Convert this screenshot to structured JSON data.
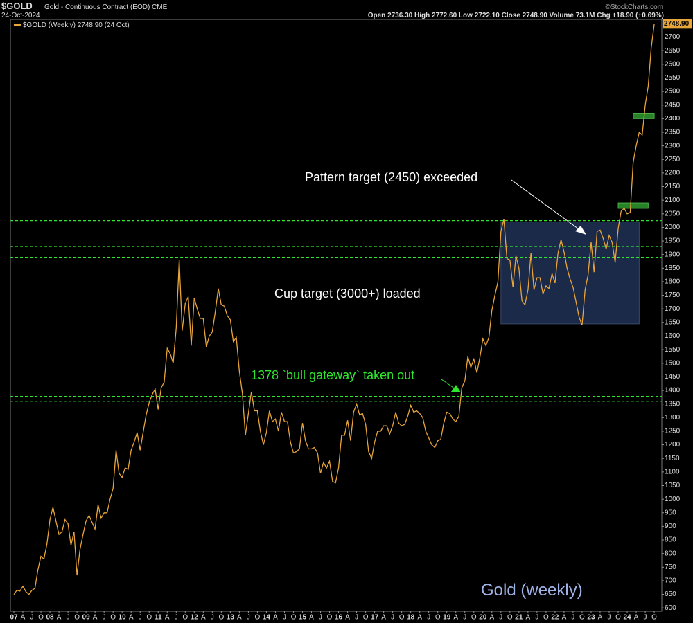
{
  "chart_data": {
    "type": "line",
    "title": "$GOLD",
    "subtitle": "Gold - Continuous Contract (EOD) CME",
    "date": "24-Oct-2024",
    "quote": "Open 2736.30  High 2772.60  Low 2722.10  Close 2748.90  Volume 73.1M  Chg +18.90 (+0.69%)",
    "source": "©StockCharts.com",
    "annotations": [
      "Pattern target (2450) exceeded",
      "Cup target (3000+) loaded",
      "1378 `bull gateway` taken out",
      "Gold (weekly)"
    ],
    "x": [
      "2007-01",
      "2007-02",
      "2007-03",
      "2007-04",
      "2007-05",
      "2007-06",
      "2007-07",
      "2007-08",
      "2007-09",
      "2007-10",
      "2007-11",
      "2007-12",
      "2008-01",
      "2008-02",
      "2008-03",
      "2008-04",
      "2008-05",
      "2008-06",
      "2008-07",
      "2008-08",
      "2008-09",
      "2008-10",
      "2008-11",
      "2008-12",
      "2009-01",
      "2009-02",
      "2009-03",
      "2009-04",
      "2009-05",
      "2009-06",
      "2009-07",
      "2009-08",
      "2009-09",
      "2009-10",
      "2009-11",
      "2009-12",
      "2010-01",
      "2010-02",
      "2010-03",
      "2010-04",
      "2010-05",
      "2010-06",
      "2010-07",
      "2010-08",
      "2010-09",
      "2010-10",
      "2010-11",
      "2010-12",
      "2011-01",
      "2011-02",
      "2011-03",
      "2011-04",
      "2011-05",
      "2011-06",
      "2011-07",
      "2011-08",
      "2011-09",
      "2011-10",
      "2011-11",
      "2011-12",
      "2012-01",
      "2012-02",
      "2012-03",
      "2012-04",
      "2012-05",
      "2012-06",
      "2012-07",
      "2012-08",
      "2012-09",
      "2012-10",
      "2012-11",
      "2012-12",
      "2013-01",
      "2013-02",
      "2013-03",
      "2013-04",
      "2013-05",
      "2013-06",
      "2013-07",
      "2013-08",
      "2013-09",
      "2013-10",
      "2013-11",
      "2013-12",
      "2014-01",
      "2014-02",
      "2014-03",
      "2014-04",
      "2014-05",
      "2014-06",
      "2014-07",
      "2014-08",
      "2014-09",
      "2014-10",
      "2014-11",
      "2014-12",
      "2015-01",
      "2015-02",
      "2015-03",
      "2015-04",
      "2015-05",
      "2015-06",
      "2015-07",
      "2015-08",
      "2015-09",
      "2015-10",
      "2015-11",
      "2015-12",
      "2016-01",
      "2016-02",
      "2016-03",
      "2016-04",
      "2016-05",
      "2016-06",
      "2016-07",
      "2016-08",
      "2016-09",
      "2016-10",
      "2016-11",
      "2016-12",
      "2017-01",
      "2017-02",
      "2017-03",
      "2017-04",
      "2017-05",
      "2017-06",
      "2017-07",
      "2017-08",
      "2017-09",
      "2017-10",
      "2017-11",
      "2017-12",
      "2018-01",
      "2018-02",
      "2018-03",
      "2018-04",
      "2018-05",
      "2018-06",
      "2018-07",
      "2018-08",
      "2018-09",
      "2018-10",
      "2018-11",
      "2018-12",
      "2019-01",
      "2019-02",
      "2019-03",
      "2019-04",
      "2019-05",
      "2019-06",
      "2019-07",
      "2019-08",
      "2019-09",
      "2019-10",
      "2019-11",
      "2019-12",
      "2020-01",
      "2020-02",
      "2020-03",
      "2020-04",
      "2020-05",
      "2020-06",
      "2020-07",
      "2020-08",
      "2020-09",
      "2020-10",
      "2020-11",
      "2020-12",
      "2021-01",
      "2021-02",
      "2021-03",
      "2021-04",
      "2021-05",
      "2021-06",
      "2021-07",
      "2021-08",
      "2021-09",
      "2021-10",
      "2021-11",
      "2021-12",
      "2022-01",
      "2022-02",
      "2022-03",
      "2022-04",
      "2022-05",
      "2022-06",
      "2022-07",
      "2022-08",
      "2022-09",
      "2022-10",
      "2022-11",
      "2022-12",
      "2023-01",
      "2023-02",
      "2023-03",
      "2023-04",
      "2023-05",
      "2023-06",
      "2023-07",
      "2023-08",
      "2023-09",
      "2023-10",
      "2023-11",
      "2023-12",
      "2024-01",
      "2024-02",
      "2024-03",
      "2024-04",
      "2024-05",
      "2024-06",
      "2024-07",
      "2024-08",
      "2024-09",
      "2024-10"
    ],
    "series": [
      {
        "name": "$GOLD (Weekly) 2748.90 (24 Oct)",
        "color": "#e8a53a",
        "values": [
          650,
          665,
          662,
          680,
          660,
          650,
          665,
          672,
          740,
          790,
          780,
          835,
          925,
          970,
          920,
          870,
          880,
          925,
          910,
          830,
          880,
          720,
          815,
          870,
          920,
          940,
          915,
          890,
          980,
          930,
          950,
          950,
          1000,
          1040,
          1180,
          1095,
          1080,
          1115,
          1110,
          1180,
          1210,
          1245,
          1180,
          1245,
          1310,
          1355,
          1385,
          1405,
          1330,
          1410,
          1430,
          1555,
          1535,
          1500,
          1630,
          1880,
          1620,
          1720,
          1745,
          1565,
          1740,
          1700,
          1665,
          1665,
          1560,
          1600,
          1615,
          1690,
          1775,
          1715,
          1710,
          1675,
          1660,
          1580,
          1595,
          1470,
          1390,
          1235,
          1315,
          1395,
          1325,
          1325,
          1250,
          1200,
          1245,
          1325,
          1285,
          1295,
          1250,
          1320,
          1285,
          1285,
          1210,
          1170,
          1175,
          1185,
          1280,
          1215,
          1185,
          1185,
          1190,
          1170,
          1095,
          1135,
          1115,
          1140,
          1065,
          1060,
          1115,
          1235,
          1235,
          1290,
          1215,
          1320,
          1350,
          1310,
          1315,
          1275,
          1175,
          1150,
          1210,
          1250,
          1250,
          1270,
          1270,
          1240,
          1270,
          1320,
          1280,
          1270,
          1275,
          1305,
          1345,
          1320,
          1325,
          1315,
          1300,
          1250,
          1225,
          1200,
          1190,
          1215,
          1220,
          1280,
          1320,
          1315,
          1295,
          1285,
          1305,
          1410,
          1435,
          1525,
          1485,
          1515,
          1465,
          1520,
          1590,
          1565,
          1595,
          1695,
          1750,
          1800,
          1985,
          2030,
          1885,
          1880,
          1780,
          1895,
          1850,
          1730,
          1715,
          1770,
          1905,
          1770,
          1815,
          1815,
          1755,
          1785,
          1775,
          1830,
          1795,
          1905,
          1955,
          1910,
          1850,
          1810,
          1780,
          1725,
          1670,
          1640,
          1770,
          1825,
          1945,
          1835,
          1985,
          1990,
          1960,
          1920,
          1970,
          1945,
          1870,
          1995,
          2060,
          2070,
          2050,
          2055,
          2240,
          2300,
          2350,
          2340,
          2450,
          2520,
          2660,
          2748.9
        ],
        "value_labels": [
          null,
          null,
          null,
          null,
          null,
          null,
          null,
          null,
          null,
          null,
          null,
          null,
          null,
          null,
          null,
          null,
          null,
          null,
          null,
          null,
          null,
          null,
          null,
          null,
          null,
          null,
          null,
          null,
          null,
          null,
          null,
          null,
          null,
          null,
          null,
          null,
          null,
          null,
          null,
          null,
          null,
          null,
          null,
          null,
          null,
          null,
          null,
          null,
          null,
          null,
          null,
          null,
          null,
          null,
          null,
          null,
          null,
          null,
          null,
          null,
          null,
          null,
          null,
          null,
          null,
          null,
          null,
          null,
          null,
          null,
          null,
          null,
          null,
          null,
          null,
          null,
          null,
          null,
          null,
          null,
          null,
          null,
          null,
          null,
          null,
          null,
          null,
          null,
          null,
          null,
          null,
          null,
          null,
          null,
          null,
          null,
          null,
          null,
          null,
          null,
          null,
          null,
          null,
          null,
          null,
          null,
          null,
          null,
          null,
          null,
          null,
          null,
          null,
          null,
          null,
          null,
          null,
          null,
          null,
          null,
          null,
          null,
          null,
          null,
          null,
          null,
          null,
          null,
          null,
          null,
          null,
          null,
          null,
          null,
          null,
          null,
          null,
          null,
          null,
          null,
          null,
          null,
          null,
          null,
          null,
          null,
          null,
          null,
          null,
          null,
          null,
          null,
          null,
          null,
          null,
          null,
          null,
          null,
          null,
          null,
          null,
          null,
          null,
          null,
          null,
          null,
          null,
          null,
          null,
          null,
          null,
          null,
          null,
          null,
          null,
          null,
          null,
          null,
          null,
          null,
          null,
          null,
          null,
          null,
          null,
          null,
          null,
          null,
          null,
          null,
          null,
          null,
          null,
          null,
          null,
          null,
          null,
          null,
          null,
          null,
          null,
          null,
          null,
          null,
          null,
          null,
          null,
          null,
          null,
          null,
          null,
          null,
          null,
          "2748.90"
        ]
      }
    ],
    "ylim": [
      570,
      2765
    ],
    "yticks": [
      600,
      650,
      700,
      750,
      800,
      850,
      900,
      950,
      1000,
      1050,
      1100,
      1150,
      1200,
      1250,
      1300,
      1350,
      1400,
      1450,
      1500,
      1550,
      1600,
      1650,
      1700,
      1750,
      1800,
      1850,
      1900,
      1950,
      2000,
      2050,
      2100,
      2150,
      2200,
      2250,
      2300,
      2350,
      2400,
      2450,
      2500,
      2550,
      2600,
      2650,
      2700
    ],
    "xlim": [
      "2007-01",
      "2024-12"
    ],
    "xticks": [
      {
        "value": "2007-01",
        "label": "07"
      },
      {
        "value": "2007-04",
        "label": "A"
      },
      {
        "value": "2007-07",
        "label": "J"
      },
      {
        "value": "2007-10",
        "label": "O"
      },
      {
        "value": "2008-01",
        "label": "08"
      },
      {
        "value": "2008-04",
        "label": "A"
      },
      {
        "value": "2008-07",
        "label": "J"
      },
      {
        "value": "2008-10",
        "label": "O"
      },
      {
        "value": "2009-01",
        "label": "09"
      },
      {
        "value": "2009-04",
        "label": "A"
      },
      {
        "value": "2009-07",
        "label": "J"
      },
      {
        "value": "2009-10",
        "label": "O"
      },
      {
        "value": "2010-01",
        "label": "10"
      },
      {
        "value": "2010-04",
        "label": "A"
      },
      {
        "value": "2010-07",
        "label": "J"
      },
      {
        "value": "2010-10",
        "label": "O"
      },
      {
        "value": "2011-01",
        "label": "11"
      },
      {
        "value": "2011-04",
        "label": "A"
      },
      {
        "value": "2011-07",
        "label": "J"
      },
      {
        "value": "2011-10",
        "label": "O"
      },
      {
        "value": "2012-01",
        "label": "12"
      },
      {
        "value": "2012-04",
        "label": "A"
      },
      {
        "value": "2012-07",
        "label": "J"
      },
      {
        "value": "2012-10",
        "label": "O"
      },
      {
        "value": "2013-01",
        "label": "13"
      },
      {
        "value": "2013-04",
        "label": "A"
      },
      {
        "value": "2013-07",
        "label": "J"
      },
      {
        "value": "2013-10",
        "label": "O"
      },
      {
        "value": "2014-01",
        "label": "14"
      },
      {
        "value": "2014-04",
        "label": "A"
      },
      {
        "value": "2014-07",
        "label": "J"
      },
      {
        "value": "2014-10",
        "label": "O"
      },
      {
        "value": "2015-01",
        "label": "15"
      },
      {
        "value": "2015-04",
        "label": "A"
      },
      {
        "value": "2015-07",
        "label": "J"
      },
      {
        "value": "2015-10",
        "label": "O"
      },
      {
        "value": "2016-01",
        "label": "16"
      },
      {
        "value": "2016-04",
        "label": "A"
      },
      {
        "value": "2016-07",
        "label": "J"
      },
      {
        "value": "2016-10",
        "label": "O"
      },
      {
        "value": "2017-01",
        "label": "17"
      },
      {
        "value": "2017-04",
        "label": "A"
      },
      {
        "value": "2017-07",
        "label": "J"
      },
      {
        "value": "2017-10",
        "label": "O"
      },
      {
        "value": "2018-01",
        "label": "18"
      },
      {
        "value": "2018-04",
        "label": "A"
      },
      {
        "value": "2018-07",
        "label": "J"
      },
      {
        "value": "2018-10",
        "label": "O"
      },
      {
        "value": "2019-01",
        "label": "19"
      },
      {
        "value": "2019-04",
        "label": "A"
      },
      {
        "value": "2019-07",
        "label": "J"
      },
      {
        "value": "2019-10",
        "label": "O"
      },
      {
        "value": "2020-01",
        "label": "20"
      },
      {
        "value": "2020-04",
        "label": "A"
      },
      {
        "value": "2020-07",
        "label": "J"
      },
      {
        "value": "2020-10",
        "label": "O"
      },
      {
        "value": "2021-01",
        "label": "21"
      },
      {
        "value": "2021-04",
        "label": "A"
      },
      {
        "value": "2021-07",
        "label": "J"
      },
      {
        "value": "2021-10",
        "label": "O"
      },
      {
        "value": "2022-01",
        "label": "22"
      },
      {
        "value": "2022-04",
        "label": "A"
      },
      {
        "value": "2022-07",
        "label": "J"
      },
      {
        "value": "2022-10",
        "label": "O"
      },
      {
        "value": "2023-01",
        "label": "23"
      },
      {
        "value": "2023-04",
        "label": "A"
      },
      {
        "value": "2023-07",
        "label": "J"
      },
      {
        "value": "2023-10",
        "label": "O"
      },
      {
        "value": "2024-01",
        "label": "24"
      },
      {
        "value": "2024-04",
        "label": "A"
      },
      {
        "value": "2024-07",
        "label": "J"
      },
      {
        "value": "2024-10",
        "label": "O"
      }
    ],
    "grid": false,
    "levels": {
      "values": [
        2025,
        1930,
        1890,
        1378,
        1360
      ],
      "color": "#2ee82e"
    },
    "zones": [
      {
        "x": [
          "2020-07",
          "2024-05"
        ],
        "y": [
          1645,
          2020
        ],
        "color": "#1b2a48"
      },
      {
        "x": [
          "2023-10",
          "2024-08"
        ],
        "y": [
          2070,
          2090
        ],
        "color": "#2f9a2f"
      },
      {
        "x": [
          "2024-03",
          "2024-10"
        ],
        "y": [
          2400,
          2420
        ],
        "color": "#2f9a2f"
      }
    ]
  }
}
